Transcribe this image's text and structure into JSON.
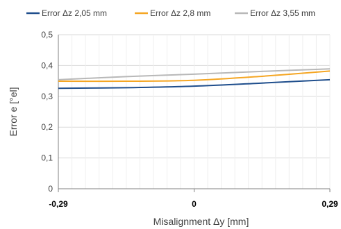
{
  "chart_data": {
    "type": "line",
    "title": "",
    "xlabel": "Misalignment Δy [mm]",
    "ylabel": "Error e [°el]",
    "x": [
      -0.29,
      -0.145,
      0,
      0.145,
      0.29
    ],
    "x_tick_labels": [
      "-0,29",
      "0",
      "0,29"
    ],
    "x_tick_values": [
      -0.29,
      0,
      0.29
    ],
    "xlim": [
      -0.29,
      0.29
    ],
    "ylim": [
      0,
      0.5
    ],
    "y_tick_values": [
      0,
      0.1,
      0.2,
      0.3,
      0.4,
      0.5
    ],
    "y_tick_labels": [
      "0",
      "0,1",
      "0,2",
      "0,3",
      "0,4",
      "0,5"
    ],
    "grid": true,
    "legend_position": "top",
    "series": [
      {
        "name": "Error Δz 2,05 mm",
        "color": "#1f4e8c",
        "values": [
          0.326,
          0.328,
          0.333,
          0.343,
          0.354
        ]
      },
      {
        "name": "Error Δz 2,8 mm",
        "color": "#f5a623",
        "values": [
          0.349,
          0.349,
          0.352,
          0.365,
          0.382
        ]
      },
      {
        "name": "Error Δz 3,55 mm",
        "color": "#b8b8b8",
        "values": [
          0.354,
          0.364,
          0.372,
          0.381,
          0.389
        ]
      }
    ]
  }
}
